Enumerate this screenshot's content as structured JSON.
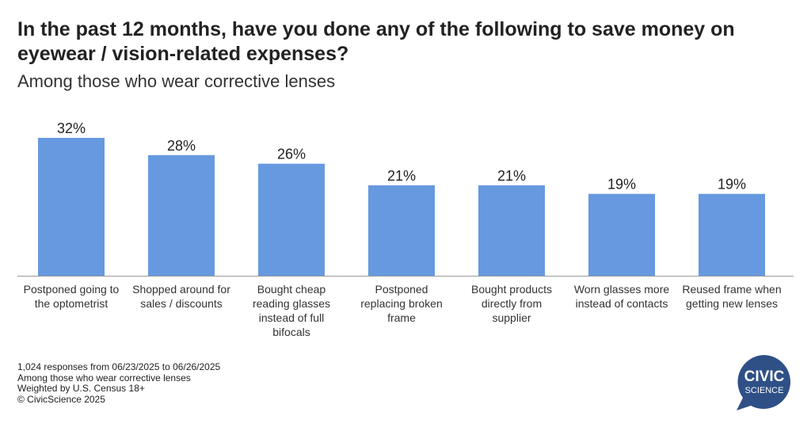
{
  "title": "In the past 12 months, have you done any of the following to save money on eyewear / vision-related expenses?",
  "subtitle": "Among those who wear corrective lenses",
  "chart_data": {
    "type": "bar",
    "categories": [
      [
        "Postponed going to",
        "the optometrist"
      ],
      [
        "Shopped around for",
        "sales / discounts"
      ],
      [
        "Bought cheap",
        "reading glasses",
        "instead of full",
        "bifocals"
      ],
      [
        "Postponed",
        "replacing broken",
        "frame"
      ],
      [
        "Bought products",
        "directly from",
        "supplier"
      ],
      [
        "Worn glasses more",
        "instead of contacts"
      ],
      [
        "Reused frame when",
        "getting new lenses"
      ]
    ],
    "values": [
      32,
      28,
      26,
      21,
      21,
      19,
      19
    ],
    "data_labels": [
      "32%",
      "28%",
      "26%",
      "21%",
      "21%",
      "19%",
      "19%"
    ],
    "ylim": [
      0,
      32
    ],
    "grid": false,
    "bar_color": "#6699E0"
  },
  "footnotes": [
    "1,024 responses from 06/23/2025 to 06/26/2025",
    "Among those who wear corrective lenses",
    "Weighted by U.S. Census 18+",
    "© CivicScience 2025"
  ],
  "logo": {
    "line1": "CIVIC",
    "line2": "SCIENCE",
    "color": "#2E5086"
  }
}
